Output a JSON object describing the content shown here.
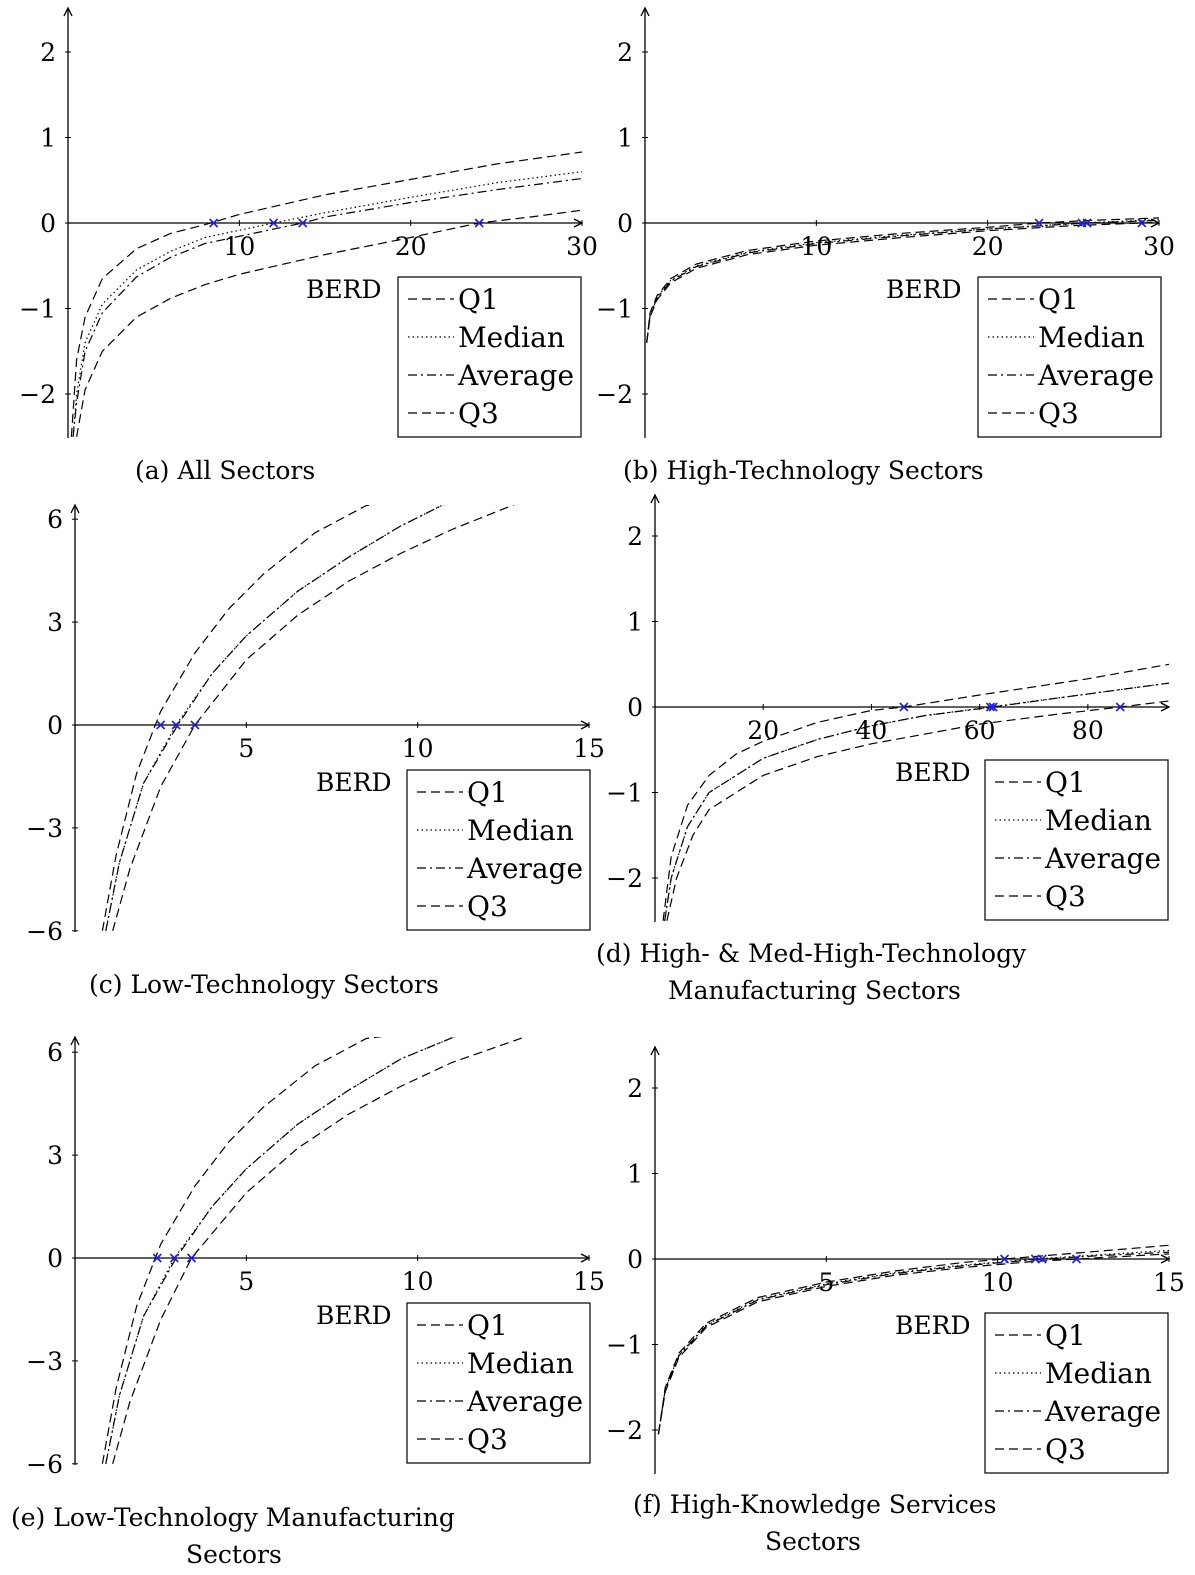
{
  "chart_data": [
    {
      "type": "line",
      "caption": "(a) All Sectors",
      "xlabel": "BERD",
      "ylabel": "",
      "xlim": [
        0,
        30
      ],
      "ylim": [
        -2.5,
        2.5
      ],
      "xticks": [
        10,
        20,
        30
      ],
      "yticks": [
        -2,
        -1,
        0,
        1,
        2
      ],
      "legend_position": "bottom-right",
      "series": [
        {
          "name": "Q1",
          "style": "dashed",
          "x": [
            0.2,
            0.5,
            1,
            2,
            4,
            6,
            8,
            10,
            15,
            20,
            25,
            30
          ],
          "values": [
            -2.5,
            -1.6,
            -1.1,
            -0.65,
            -0.3,
            -0.12,
            -0.02,
            0.1,
            0.33,
            0.51,
            0.69,
            0.83
          ]
        },
        {
          "name": "Median",
          "style": "dotted",
          "x": [
            0.3,
            0.5,
            1,
            2,
            4,
            6,
            8,
            12,
            15,
            20,
            25,
            30
          ],
          "values": [
            -2.5,
            -2.0,
            -1.4,
            -0.95,
            -0.55,
            -0.33,
            -0.17,
            0.0,
            0.12,
            0.3,
            0.47,
            0.6
          ]
        },
        {
          "name": "Average",
          "style": "dashdot",
          "x": [
            0.3,
            0.5,
            1,
            2,
            4,
            6,
            8,
            13.7,
            15,
            20,
            25,
            30
          ],
          "values": [
            -2.5,
            -2.1,
            -1.5,
            -1.05,
            -0.63,
            -0.4,
            -0.24,
            0.0,
            0.07,
            0.24,
            0.39,
            0.52
          ]
        },
        {
          "name": "Q3",
          "style": "dashed",
          "x": [
            0.5,
            1,
            2,
            4,
            6,
            8,
            10,
            15,
            20,
            24,
            27,
            30
          ],
          "values": [
            -2.5,
            -1.95,
            -1.5,
            -1.1,
            -0.88,
            -0.72,
            -0.6,
            -0.37,
            -0.17,
            0.0,
            0.07,
            0.15
          ]
        }
      ],
      "zeros": [
        8.5,
        12,
        13.7,
        24
      ]
    },
    {
      "type": "line",
      "caption": "(b) High-Technology Sectors",
      "xlabel": "BERD",
      "ylabel": "",
      "xlim": [
        0,
        30
      ],
      "ylim": [
        -2.5,
        2.5
      ],
      "xticks": [
        10,
        20,
        30
      ],
      "yticks": [
        -2,
        -1,
        0,
        1,
        2
      ],
      "legend_position": "bottom-right",
      "series": [
        {
          "name": "Q1",
          "style": "dashed",
          "x": [
            0.1,
            0.3,
            0.7,
            1.5,
            3,
            6,
            10,
            15,
            20,
            23,
            26,
            30
          ],
          "values": [
            -1.4,
            -1.05,
            -0.85,
            -0.65,
            -0.48,
            -0.32,
            -0.21,
            -0.12,
            -0.05,
            0.0,
            0.03,
            0.06
          ]
        },
        {
          "name": "Median",
          "style": "dotted",
          "x": [
            0.1,
            0.3,
            0.7,
            1.5,
            3,
            6,
            10,
            15,
            20,
            25.5,
            30
          ],
          "values": [
            -1.4,
            -1.07,
            -0.87,
            -0.67,
            -0.5,
            -0.34,
            -0.23,
            -0.14,
            -0.07,
            0.0,
            0.04
          ]
        },
        {
          "name": "Average",
          "style": "dashdot",
          "x": [
            0.1,
            0.3,
            0.7,
            1.5,
            3,
            6,
            10,
            15,
            20,
            25.8,
            30
          ],
          "values": [
            -1.4,
            -1.08,
            -0.88,
            -0.68,
            -0.51,
            -0.35,
            -0.24,
            -0.15,
            -0.07,
            0.0,
            0.03
          ]
        },
        {
          "name": "Q3",
          "style": "dashed",
          "x": [
            0.1,
            0.3,
            0.7,
            1.5,
            3,
            6,
            10,
            15,
            20,
            25,
            29,
            30
          ],
          "values": [
            -1.4,
            -1.1,
            -0.9,
            -0.7,
            -0.53,
            -0.37,
            -0.26,
            -0.17,
            -0.09,
            -0.03,
            0.0,
            0.01
          ]
        }
      ],
      "zeros": [
        23,
        25.5,
        25.8,
        29
      ]
    },
    {
      "type": "line",
      "caption": "(c) Low-Technology Sectors",
      "xlabel": "BERD",
      "ylabel": "",
      "xlim": [
        0,
        15
      ],
      "ylim": [
        -6,
        6.5
      ],
      "xticks": [
        5,
        10,
        15
      ],
      "yticks": [
        -6,
        -3,
        0,
        3,
        6
      ],
      "legend_position": "bottom-right",
      "series": [
        {
          "name": "Q1",
          "style": "dashed",
          "x": [
            0.8,
            1.2,
            1.8,
            2.5,
            3.5,
            4.5,
            5.5,
            7,
            8.5,
            9.2
          ],
          "values": [
            -6,
            -3.8,
            -1.4,
            0.4,
            2.1,
            3.4,
            4.4,
            5.6,
            6.4,
            6.5
          ]
        },
        {
          "name": "Median",
          "style": "dotted",
          "x": [
            0.9,
            1.3,
            2,
            2.95,
            4,
            5,
            6.5,
            8,
            9.5,
            10.9
          ],
          "values": [
            -6,
            -4.0,
            -1.7,
            0.0,
            1.5,
            2.6,
            3.9,
            4.9,
            5.8,
            6.5
          ]
        },
        {
          "name": "Average",
          "style": "dashdot",
          "x": [
            0.9,
            1.3,
            2,
            3.0,
            4,
            5,
            6.5,
            8,
            9.5,
            10.9
          ],
          "values": [
            -6,
            -4.0,
            -1.7,
            0.0,
            1.5,
            2.6,
            3.9,
            4.9,
            5.8,
            6.5
          ]
        },
        {
          "name": "Q3",
          "style": "dashed",
          "x": [
            1.1,
            1.6,
            2.5,
            3.5,
            5,
            6.5,
            8,
            9.5,
            11,
            13
          ],
          "values": [
            -6,
            -4.2,
            -1.8,
            0.0,
            1.9,
            3.2,
            4.2,
            5.0,
            5.7,
            6.5
          ]
        }
      ],
      "zeros": [
        2.5,
        2.95,
        3.5
      ]
    },
    {
      "type": "line",
      "caption": "(d) High- & Med-High-Technology Manufacturing Sectors",
      "xlabel": "BERD",
      "ylabel": "",
      "xlim": [
        0,
        95
      ],
      "ylim": [
        -2.5,
        2.5
      ],
      "xticks": [
        20,
        40,
        60,
        80
      ],
      "yticks": [
        -2,
        -1,
        0,
        1,
        2
      ],
      "legend_position": "bottom-right",
      "series": [
        {
          "name": "Q1",
          "style": "dashed",
          "x": [
            1.5,
            3,
            6,
            10,
            15,
            20,
            30,
            40,
            46,
            60,
            80,
            95
          ],
          "values": [
            -2.5,
            -1.75,
            -1.15,
            -0.8,
            -0.55,
            -0.4,
            -0.18,
            -0.04,
            0.0,
            0.14,
            0.33,
            0.5
          ]
        },
        {
          "name": "Median",
          "style": "dotted",
          "x": [
            1.8,
            3,
            6,
            10,
            20,
            30,
            40,
            50,
            62,
            75,
            95
          ],
          "values": [
            -2.5,
            -2.0,
            -1.4,
            -1.0,
            -0.6,
            -0.38,
            -0.22,
            -0.1,
            0.0,
            0.11,
            0.28
          ]
        },
        {
          "name": "Average",
          "style": "dashdot",
          "x": [
            1.8,
            3,
            6,
            10,
            20,
            30,
            40,
            50,
            62.5,
            75,
            95
          ],
          "values": [
            -2.5,
            -2.0,
            -1.4,
            -1.0,
            -0.6,
            -0.38,
            -0.22,
            -0.1,
            0.0,
            0.11,
            0.28
          ]
        },
        {
          "name": "Q3",
          "style": "dashed",
          "x": [
            2.2,
            4,
            7,
            10,
            20,
            30,
            40,
            60,
            75,
            86,
            95
          ],
          "values": [
            -2.5,
            -2.0,
            -1.5,
            -1.2,
            -0.8,
            -0.58,
            -0.43,
            -0.2,
            -0.08,
            0.0,
            0.07
          ]
        }
      ],
      "zeros": [
        46,
        62,
        62.5,
        86
      ]
    },
    {
      "type": "line",
      "caption": "(e) Low-Technology Manufacturing Sectors",
      "xlabel": "BERD",
      "ylabel": "",
      "xlim": [
        0,
        15
      ],
      "ylim": [
        -6,
        6.5
      ],
      "xticks": [
        5,
        10,
        15
      ],
      "yticks": [
        -6,
        -3,
        0,
        3,
        6
      ],
      "legend_position": "bottom-right",
      "series": [
        {
          "name": "Q1",
          "style": "dashed",
          "x": [
            0.8,
            1.2,
            1.8,
            2.5,
            3.5,
            4.5,
            5.5,
            7,
            8.5,
            9.3
          ],
          "values": [
            -6,
            -3.8,
            -1.4,
            0.4,
            2.1,
            3.4,
            4.4,
            5.6,
            6.4,
            6.5
          ]
        },
        {
          "name": "Median",
          "style": "dotted",
          "x": [
            0.9,
            1.3,
            2,
            2.9,
            4,
            5,
            6.5,
            8,
            9.5,
            11.2
          ],
          "values": [
            -6,
            -4.0,
            -1.7,
            0.0,
            1.5,
            2.6,
            3.9,
            4.9,
            5.8,
            6.5
          ]
        },
        {
          "name": "Average",
          "style": "dashdot",
          "x": [
            0.9,
            1.3,
            2,
            2.95,
            4,
            5,
            6.5,
            8,
            9.5,
            11.2
          ],
          "values": [
            -6,
            -4.0,
            -1.7,
            0.0,
            1.5,
            2.6,
            3.9,
            4.9,
            5.8,
            6.5
          ]
        },
        {
          "name": "Q3",
          "style": "dashed",
          "x": [
            1.1,
            1.6,
            2.5,
            3.4,
            5,
            6.5,
            8,
            9.5,
            11,
            13.3
          ],
          "values": [
            -6,
            -4.2,
            -1.8,
            0.0,
            1.9,
            3.2,
            4.2,
            5.0,
            5.7,
            6.5
          ]
        }
      ],
      "zeros": [
        2.4,
        2.9,
        3.4
      ]
    },
    {
      "type": "line",
      "caption": "(f) High-Knowledge Services Sectors",
      "xlabel": "BERD",
      "ylabel": "",
      "xlim": [
        0,
        15
      ],
      "ylim": [
        -2.5,
        2.5
      ],
      "xticks": [
        5,
        10,
        15
      ],
      "yticks": [
        -2,
        -1,
        0,
        1,
        2
      ],
      "legend_position": "bottom-right",
      "series": [
        {
          "name": "Q1",
          "style": "dashed",
          "x": [
            0.1,
            0.3,
            0.7,
            1.5,
            3,
            5,
            7,
            9,
            10.2,
            12,
            15
          ],
          "values": [
            -2.05,
            -1.5,
            -1.1,
            -0.75,
            -0.45,
            -0.27,
            -0.14,
            -0.04,
            0.0,
            0.06,
            0.16
          ]
        },
        {
          "name": "Median",
          "style": "dotted",
          "x": [
            0.1,
            0.3,
            0.7,
            1.5,
            3,
            5,
            7,
            9,
            11.1,
            13,
            15
          ],
          "values": [
            -2.05,
            -1.52,
            -1.12,
            -0.77,
            -0.47,
            -0.29,
            -0.16,
            -0.07,
            0.0,
            0.05,
            0.1
          ]
        },
        {
          "name": "Average",
          "style": "dashdot",
          "x": [
            0.1,
            0.3,
            0.7,
            1.5,
            3,
            5,
            7,
            9,
            11.3,
            13,
            15
          ],
          "values": [
            -2.05,
            -1.52,
            -1.13,
            -0.78,
            -0.48,
            -0.3,
            -0.17,
            -0.08,
            0.0,
            0.04,
            0.08
          ]
        },
        {
          "name": "Q3",
          "style": "dashed",
          "x": [
            0.1,
            0.3,
            0.7,
            1.5,
            3,
            5,
            7,
            9,
            11,
            12.3,
            15
          ],
          "values": [
            -2.05,
            -1.55,
            -1.15,
            -0.8,
            -0.5,
            -0.32,
            -0.19,
            -0.1,
            -0.03,
            0.0,
            0.06
          ]
        }
      ],
      "zeros": [
        10.2,
        11.1,
        11.3,
        12.3
      ]
    }
  ]
}
